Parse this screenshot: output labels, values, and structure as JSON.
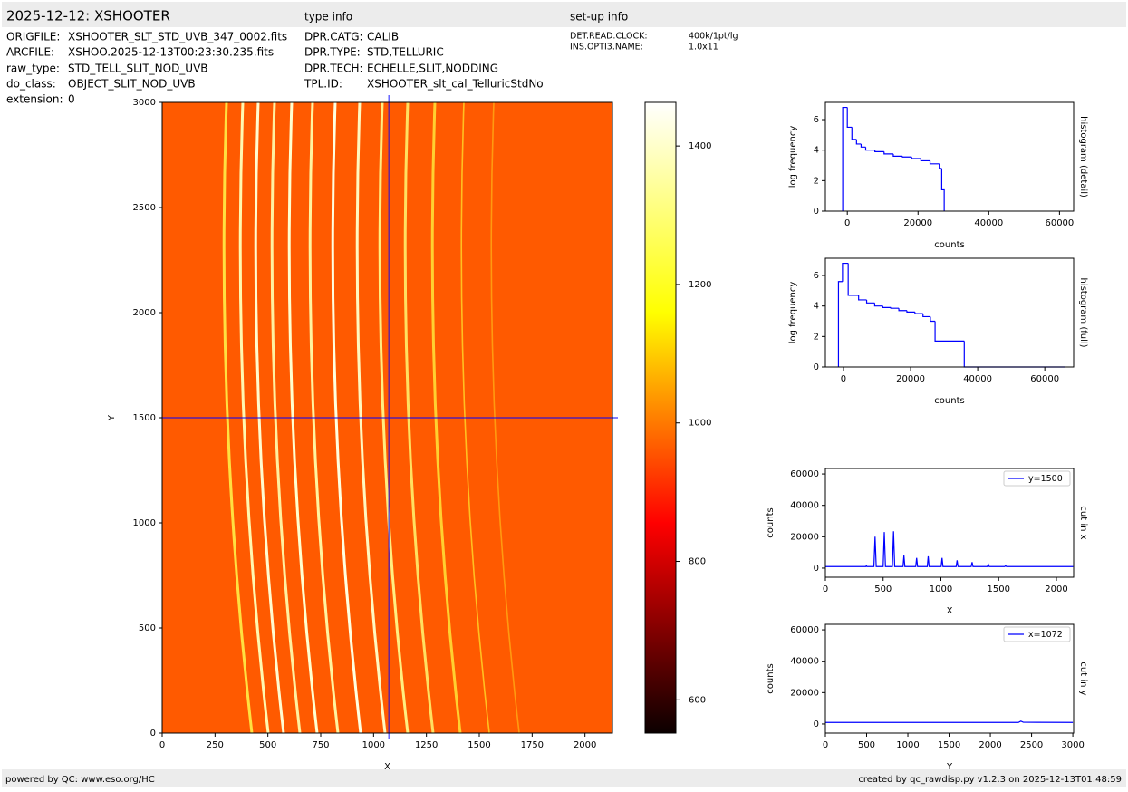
{
  "header": {
    "title": "2025-12-12: XSHOOTER",
    "type_heading": "type info",
    "setup_heading": "set-up info"
  },
  "file_info": [
    [
      "ORIGFILE:",
      "XSHOOTER_SLT_STD_UVB_347_0002.fits"
    ],
    [
      "ARCFILE:",
      "XSHOO.2025-12-13T00:23:30.235.fits"
    ],
    [
      "raw_type:",
      "STD_TELL_SLIT_NOD_UVB"
    ],
    [
      "do_class:",
      "OBJECT_SLIT_NOD_UVB"
    ],
    [
      "extension:",
      "0"
    ]
  ],
  "type_info": [
    [
      "DPR.CATG:",
      "CALIB"
    ],
    [
      "DPR.TYPE:",
      "STD,TELLURIC"
    ],
    [
      "DPR.TECH:",
      "ECHELLE,SLIT,NODDING"
    ],
    [
      "TPL.ID:",
      "XSHOOTER_slt_cal_TelluricStdNo"
    ]
  ],
  "setup_info": [
    [
      "DET.READ.CLOCK:",
      "400k/1pt/lg"
    ],
    [
      "INS.OPTI3.NAME:",
      "1.0x11"
    ]
  ],
  "footer": {
    "left": "powered by QC: www.eso.org/HC",
    "right": "created by qc_rawdisp.py v1.2.3 on 2025-12-13T01:48:59"
  },
  "chart_data": [
    {
      "type": "image",
      "xlabel": "X",
      "ylabel": "Y",
      "xlim": [
        0,
        2130
      ],
      "ylim": [
        0,
        3000
      ],
      "xticks": [
        0,
        250,
        500,
        750,
        1000,
        1250,
        1500,
        1750,
        2000
      ],
      "yticks": [
        0,
        500,
        1000,
        1500,
        2000,
        2500,
        3000
      ],
      "crosshair": {
        "x": 1072,
        "y": 1500,
        "color": "#0000ff"
      }
    },
    {
      "type": "colorbar",
      "ylim": [
        552,
        1463
      ],
      "yticks": [
        600,
        800,
        1000,
        1200,
        1400
      ],
      "colormap": [
        "#0b0000",
        "#ff0000",
        "#ffff00",
        "#ffffff"
      ]
    },
    {
      "type": "histogram",
      "side_label": "histogram (detail)",
      "xlabel": "counts",
      "ylabel": "log frequency",
      "color": "#0000ff",
      "xlim": [
        -6200,
        64000
      ],
      "xticks": [
        0,
        20000,
        40000,
        60000
      ],
      "ylim": [
        0,
        7.13
      ],
      "yticks": [
        0,
        2,
        4,
        6
      ],
      "bins": [
        -1300,
        0,
        1300,
        2600,
        3900,
        5200,
        7800,
        10400,
        13000,
        15600,
        18200,
        20800,
        23400,
        26000,
        26700,
        27400
      ],
      "values": [
        6.8,
        5.5,
        4.7,
        4.4,
        4.2,
        4.0,
        3.9,
        3.75,
        3.6,
        3.55,
        3.45,
        3.3,
        3.1,
        2.8,
        1.4
      ]
    },
    {
      "type": "histogram",
      "side_label": "histogram (full)",
      "xlabel": "counts",
      "ylabel": "log frequency",
      "color": "#0000ff",
      "xlim": [
        -5400,
        68600
      ],
      "xticks": [
        0,
        20000,
        40000,
        60000
      ],
      "ylim": [
        0,
        7.13
      ],
      "yticks": [
        0,
        2,
        4,
        6
      ],
      "bins": [
        -1500,
        -300,
        1400,
        4500,
        6900,
        9300,
        11700,
        14100,
        16500,
        18900,
        21300,
        23700,
        25900,
        27300,
        36000,
        46000,
        56000,
        66000
      ],
      "values": [
        5.6,
        6.8,
        4.7,
        4.4,
        4.2,
        4.0,
        3.9,
        3.85,
        3.7,
        3.6,
        3.5,
        3.3,
        3.0,
        1.7,
        0,
        0,
        0
      ]
    },
    {
      "type": "line",
      "side_label": "cut in x",
      "xlabel": "X",
      "ylabel": "counts",
      "xlim": [
        0,
        2149
      ],
      "xticks": [
        0,
        500,
        1000,
        1500,
        2000
      ],
      "ylim": [
        -5800,
        63500
      ],
      "yticks": [
        0,
        20000,
        40000,
        60000
      ],
      "x": [
        0,
        350,
        355,
        360,
        420,
        430,
        440,
        500,
        510,
        520,
        580,
        590,
        600,
        672,
        680,
        688,
        782,
        790,
        798,
        882,
        890,
        898,
        1002,
        1010,
        1018,
        1132,
        1140,
        1148,
        1262,
        1270,
        1278,
        1402,
        1410,
        1418,
        1552,
        1560,
        1568,
        2144
      ],
      "series": [
        {
          "name": "y=1500",
          "color": "#0000ff",
          "values": [
            1000,
            1000,
            1500,
            1000,
            1000,
            20000,
            1000,
            1000,
            23000,
            1000,
            1000,
            23500,
            1000,
            1000,
            8000,
            1000,
            1000,
            6500,
            1000,
            1000,
            7500,
            1000,
            1000,
            6500,
            1000,
            1000,
            5000,
            1000,
            1000,
            3800,
            1000,
            1000,
            2600,
            1000,
            1000,
            1500,
            1000,
            1000
          ]
        }
      ]
    },
    {
      "type": "line",
      "side_label": "cut in y",
      "xlabel": "Y",
      "ylabel": "counts",
      "xlim": [
        0,
        3010
      ],
      "xticks": [
        0,
        500,
        1000,
        1500,
        2000,
        2500,
        3000
      ],
      "ylim": [
        -5800,
        63500
      ],
      "yticks": [
        0,
        20000,
        40000,
        60000
      ],
      "x": [
        0,
        2340,
        2370,
        2400,
        3000
      ],
      "series": [
        {
          "name": "x=1072",
          "color": "#0000ff",
          "values": [
            1000,
            1000,
            1800,
            1100,
            1000
          ]
        }
      ]
    }
  ]
}
